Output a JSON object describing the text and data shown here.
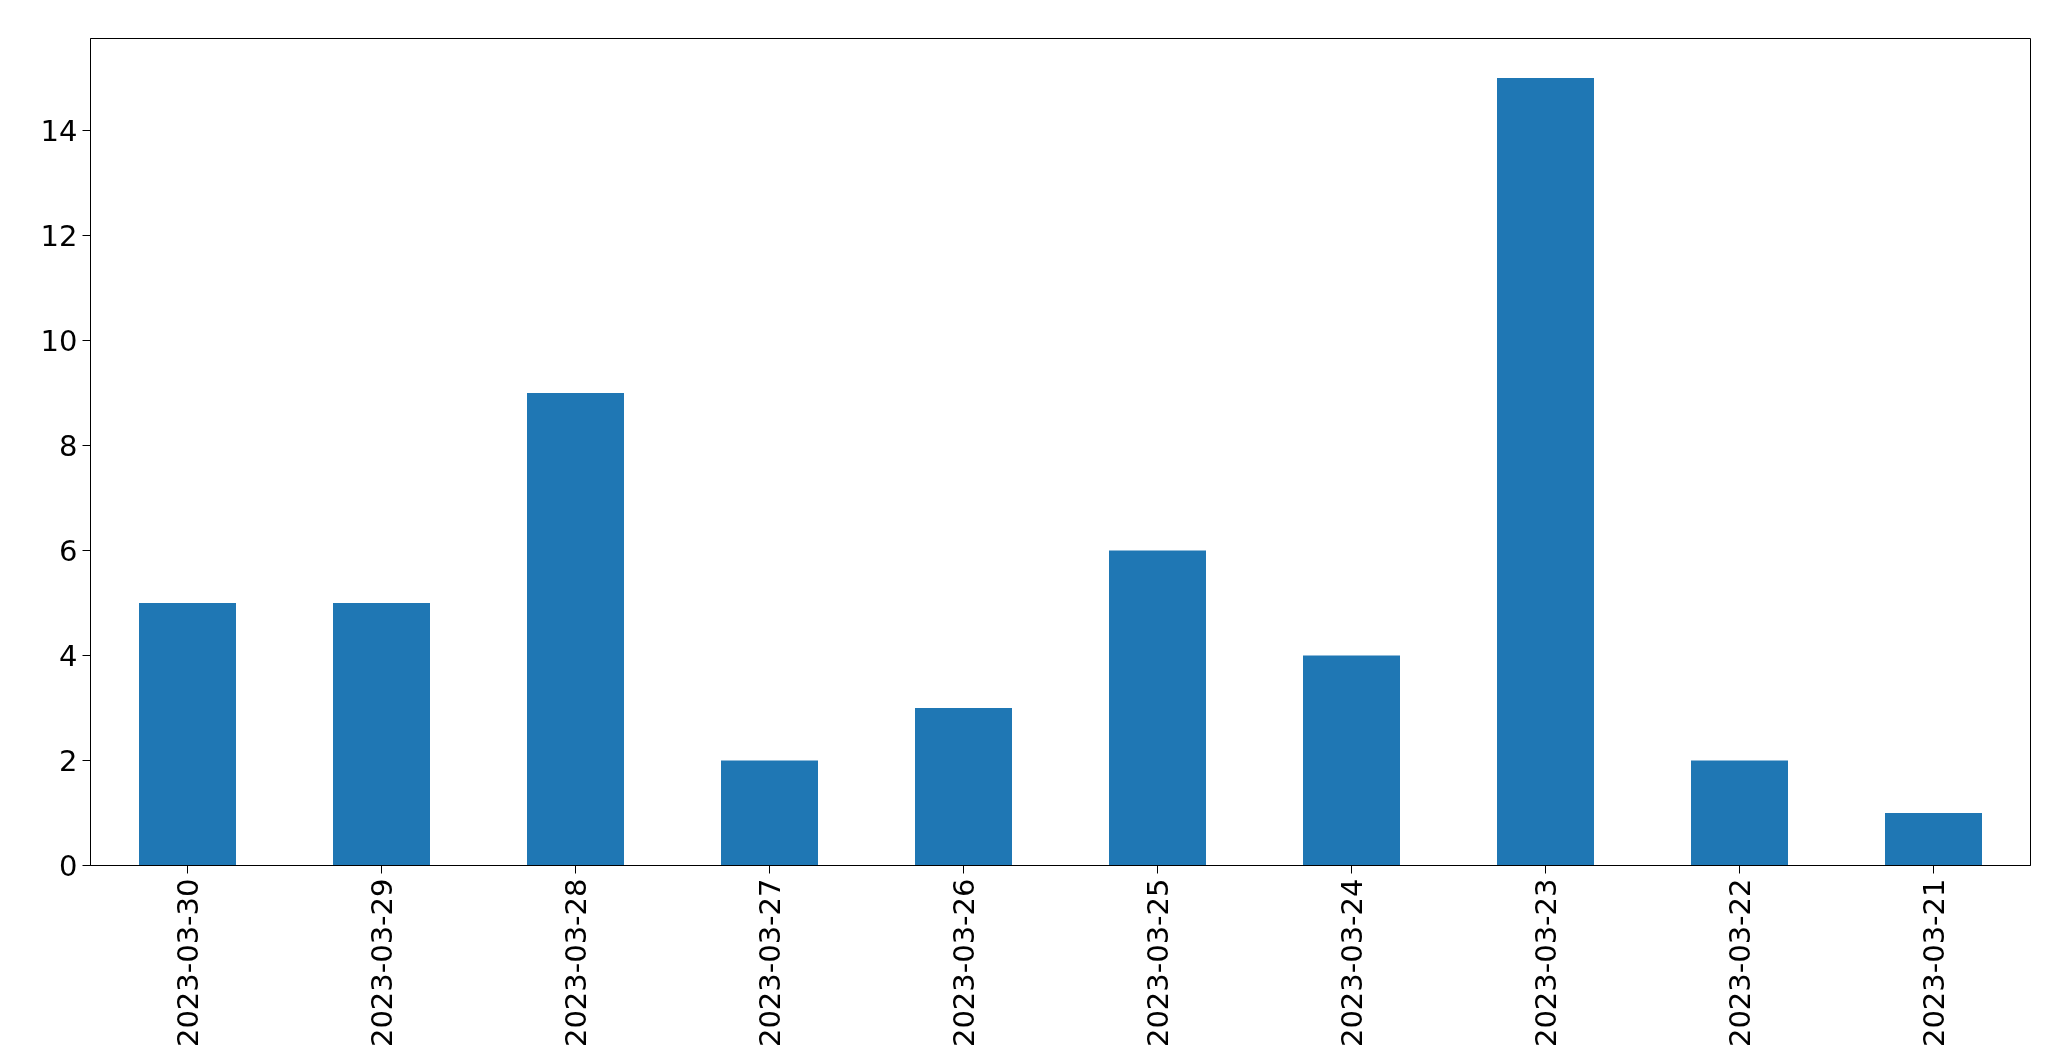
{
  "chart_data": {
    "type": "bar",
    "categories": [
      "2023-03-30",
      "2023-03-29",
      "2023-03-28",
      "2023-03-27",
      "2023-03-26",
      "2023-03-25",
      "2023-03-24",
      "2023-03-23",
      "2023-03-22",
      "2023-03-21"
    ],
    "values": [
      5,
      5,
      9,
      2,
      3,
      6,
      4,
      15,
      2,
      1
    ],
    "color": "#1f77b4",
    "ylim": [
      0,
      15.75
    ],
    "yticks": [
      0,
      2,
      4,
      6,
      8,
      10,
      12,
      14
    ],
    "grid": false
  }
}
